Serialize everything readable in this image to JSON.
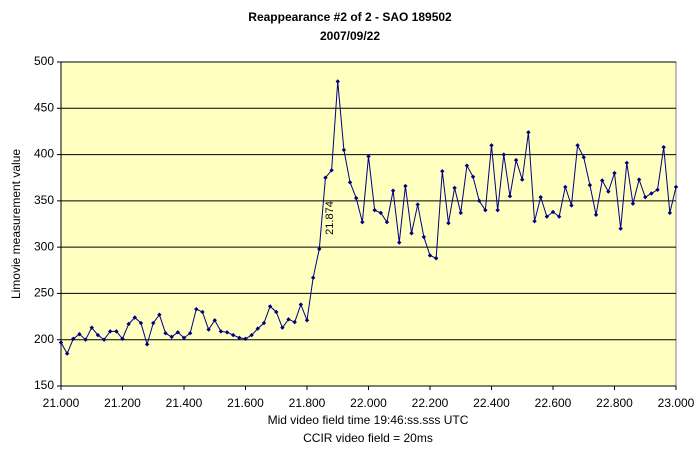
{
  "chart_data": {
    "type": "line",
    "title": "Reappearance #2 of 2 - SAO 189502",
    "subtitle": "2007/09/22",
    "xlabel": [
      "Mid video field time 19:46:ss.sss UTC",
      "CCIR video field = 20ms"
    ],
    "ylabel": "Limovie measurement value",
    "annotation": "21.874",
    "x": [
      21,
      21.02,
      21.04,
      21.06,
      21.08,
      21.1,
      21.12,
      21.14,
      21.16,
      21.18,
      21.2,
      21.22,
      21.24,
      21.26,
      21.28,
      21.3,
      21.32,
      21.34,
      21.36,
      21.38,
      21.4,
      21.42,
      21.44,
      21.46,
      21.48,
      21.5,
      21.52,
      21.54,
      21.56,
      21.58,
      21.6,
      21.62,
      21.64,
      21.66,
      21.68,
      21.7,
      21.72,
      21.74,
      21.76,
      21.78,
      21.8,
      21.82,
      21.84,
      21.86,
      21.88,
      21.9,
      21.92,
      21.94,
      21.96,
      21.98,
      22,
      22.02,
      22.04,
      22.06,
      22.08,
      22.1,
      22.12,
      22.14,
      22.16,
      22.18,
      22.2,
      22.22,
      22.24,
      22.26,
      22.28,
      22.3,
      22.32,
      22.34,
      22.36,
      22.38,
      22.4,
      22.42,
      22.44,
      22.46,
      22.48,
      22.5,
      22.52,
      22.54,
      22.56,
      22.58,
      22.6,
      22.62,
      22.64,
      22.66,
      22.68,
      22.7,
      22.72,
      22.74,
      22.76,
      22.78,
      22.8,
      22.82,
      22.84,
      22.86,
      22.88,
      22.9,
      22.92,
      22.94,
      22.96,
      22.98,
      23
    ],
    "series": [
      {
        "color": "#000080",
        "values": [
          197,
          185,
          201,
          206,
          200,
          213,
          205,
          200,
          209,
          209,
          201,
          217,
          224,
          218,
          195,
          218,
          227,
          207,
          203,
          208,
          202,
          207,
          233,
          230,
          211,
          221,
          209,
          208,
          205,
          202,
          201,
          205,
          212,
          218,
          236,
          230,
          213,
          222,
          219,
          238,
          221,
          267,
          298,
          375,
          383,
          479,
          405,
          370,
          353,
          327,
          398,
          340,
          337,
          327,
          361,
          305,
          366,
          315,
          346,
          311,
          291,
          288,
          382,
          326,
          364,
          337,
          388,
          376,
          350,
          340,
          410,
          340,
          400,
          355,
          394,
          373,
          424,
          328,
          354,
          333,
          338,
          333,
          365,
          345,
          410,
          397,
          367,
          335,
          372,
          360,
          380,
          320,
          391,
          347,
          373,
          354,
          358,
          362,
          408,
          337,
          365
        ]
      }
    ],
    "xlim": [
      21,
      23
    ],
    "xticks": [
      {
        "value": 21,
        "label": "21.000"
      },
      {
        "value": 21.2,
        "label": "21.200"
      },
      {
        "value": 21.4,
        "label": "21.400"
      },
      {
        "value": 21.6,
        "label": "21.600"
      },
      {
        "value": 21.8,
        "label": "21.800"
      },
      {
        "value": 22,
        "label": "22.000"
      },
      {
        "value": 22.2,
        "label": "22.200"
      },
      {
        "value": 22.4,
        "label": "22.400"
      },
      {
        "value": 22.6,
        "label": "22.600"
      },
      {
        "value": 22.8,
        "label": "22.800"
      },
      {
        "value": 23,
        "label": "23.000"
      }
    ],
    "ylim": [
      150,
      500
    ],
    "yticks": [
      150,
      200,
      250,
      300,
      350,
      400,
      450,
      500
    ],
    "grid": true,
    "plot_background": "#ffffc0"
  }
}
